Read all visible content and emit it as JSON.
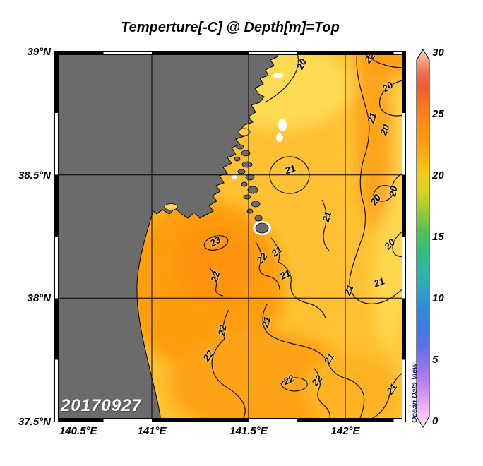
{
  "chart_data": {
    "type": "heatmap",
    "title": "Temperture[-C] @ Depth[m]=Top",
    "date_annotation": "20170927",
    "credit": "Ocean Data View",
    "variable": "Temperature",
    "depth": "Top",
    "land_color": "#6B6B6B",
    "grid": true,
    "x_axis": {
      "range": [
        140.5,
        142.31
      ],
      "ticks": [
        {
          "value": 140.5,
          "label": "140.5°E"
        },
        {
          "value": 141.0,
          "label": "141°E"
        },
        {
          "value": 141.5,
          "label": "141.5°E"
        },
        {
          "value": 142.0,
          "label": "142°E"
        }
      ]
    },
    "y_axis": {
      "range": [
        37.5,
        39.0
      ],
      "ticks": [
        {
          "value": 39.0,
          "label": "39°N"
        },
        {
          "value": 38.5,
          "label": "38.5°N"
        },
        {
          "value": 38.0,
          "label": "38°N"
        },
        {
          "value": 37.5,
          "label": "37.5°N"
        }
      ]
    },
    "colorbar": {
      "min": 0,
      "max": 30,
      "tick_values": [
        0,
        5,
        10,
        15,
        20,
        25,
        30
      ],
      "colormap": [
        [
          0,
          "#FBE7FB"
        ],
        [
          1,
          "#F6C3F6"
        ],
        [
          2,
          "#E2A4F2"
        ],
        [
          3.5,
          "#BB84F1"
        ],
        [
          5,
          "#8D74EC"
        ],
        [
          6.5,
          "#5E6FE8"
        ],
        [
          8,
          "#3A7BE4"
        ],
        [
          9.5,
          "#2F8CD9"
        ],
        [
          11,
          "#2FA4C4"
        ],
        [
          12.5,
          "#2FB7A4"
        ],
        [
          14,
          "#35BC7B"
        ],
        [
          15.5,
          "#52C055"
        ],
        [
          17,
          "#95CA34"
        ],
        [
          18.5,
          "#CFD321"
        ],
        [
          20,
          "#F2CE1B"
        ],
        [
          21,
          "#FFB915"
        ],
        [
          22.5,
          "#FF9E0E"
        ],
        [
          24,
          "#FF8D12"
        ],
        [
          25.5,
          "#FB751E"
        ],
        [
          27,
          "#F15A2D"
        ],
        [
          28,
          "#EF6A4B"
        ],
        [
          29,
          "#F49A7C"
        ],
        [
          30,
          "#FAD9C6"
        ]
      ]
    },
    "contours": {
      "interval": 1,
      "labels": [
        [
          "20",
          70.4,
          3.4,
          -65
        ],
        [
          "22",
          89.9,
          1.7,
          -50
        ],
        [
          "20",
          95.0,
          9.5,
          -35
        ],
        [
          "21",
          90.5,
          17.9,
          -75
        ],
        [
          "20",
          94.2,
          21.2,
          -70
        ],
        [
          "21",
          67.1,
          31.9,
          -20
        ],
        [
          "20",
          96.5,
          37.8,
          -80
        ],
        [
          "20",
          91.5,
          40.1,
          -55
        ],
        [
          "21",
          77.6,
          44.7,
          -75
        ],
        [
          "23",
          45.8,
          51.3,
          -30
        ],
        [
          "22",
          45.8,
          60.9,
          -75
        ],
        [
          "21",
          63.3,
          54.0,
          -40
        ],
        [
          "22",
          59.1,
          55.9,
          -50
        ],
        [
          "21",
          65.7,
          60.3,
          -25
        ],
        [
          "21",
          83.9,
          64.5,
          -70
        ],
        [
          "21",
          92.5,
          62.4,
          -20
        ],
        [
          "20",
          95.6,
          52.1,
          -45
        ],
        [
          "21",
          60.3,
          73.1,
          -75
        ],
        [
          "22",
          47.8,
          75.4,
          -80
        ],
        [
          "22",
          43.8,
          82.3,
          -55
        ],
        [
          "21",
          78.2,
          83.0,
          -60
        ],
        [
          "22",
          66.7,
          88.7,
          -25
        ],
        [
          "22",
          74.8,
          88.9,
          -50
        ],
        [
          "21",
          96.2,
          91.2,
          -55
        ]
      ]
    }
  }
}
